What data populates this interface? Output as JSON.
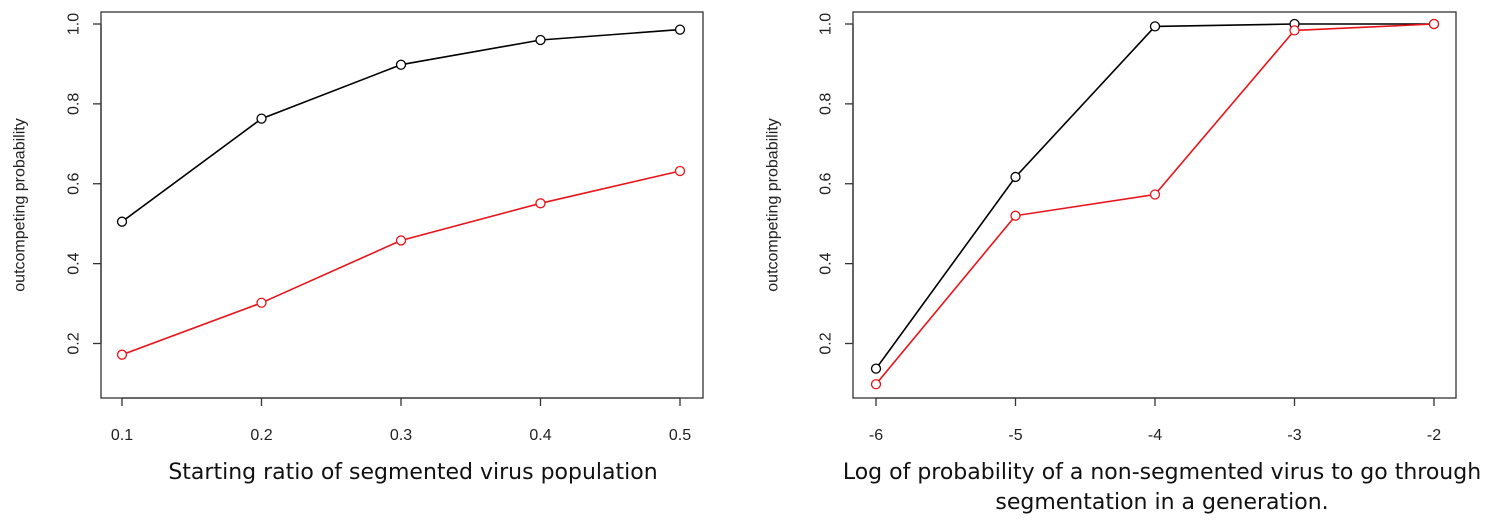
{
  "chart_data": [
    {
      "type": "line",
      "xlabel": "Starting ratio of segmented virus population",
      "ylabel": "outcompeting probability",
      "x": [
        0.1,
        0.2,
        0.3,
        0.4,
        0.5
      ],
      "xticks": [
        "0.1",
        "0.2",
        "0.3",
        "0.4",
        "0.5"
      ],
      "yticks": [
        "0.2",
        "0.4",
        "0.6",
        "0.8",
        "1.0"
      ],
      "xlim": [
        0.1,
        0.5
      ],
      "ylim": [
        0.2,
        1.0
      ],
      "grid": false,
      "series": [
        {
          "color": "#000000",
          "values": [
            0.505,
            0.763,
            0.898,
            0.96,
            0.986
          ]
        },
        {
          "color": "#e8141a",
          "values": [
            0.172,
            0.302,
            0.458,
            0.551,
            0.632
          ]
        }
      ]
    },
    {
      "type": "line",
      "xlabel": "Log of probability of a non-segmented virus to go through segmentation in a generation.",
      "ylabel": "outcompeting probability",
      "x": [
        -6,
        -5,
        -4,
        -3,
        -2
      ],
      "xticks": [
        "-6",
        "-5",
        "-4",
        "-3",
        "-2"
      ],
      "yticks": [
        "0.2",
        "0.4",
        "0.6",
        "0.8",
        "1.0"
      ],
      "xlim": [
        -6,
        -2
      ],
      "ylim": [
        0.2,
        1.0
      ],
      "grid": false,
      "series": [
        {
          "color": "#000000",
          "values": [
            0.137,
            0.617,
            0.994,
            1.0,
            1.0
          ]
        },
        {
          "color": "#e8141a",
          "values": [
            0.098,
            0.52,
            0.573,
            0.984,
            1.0
          ]
        }
      ]
    }
  ]
}
